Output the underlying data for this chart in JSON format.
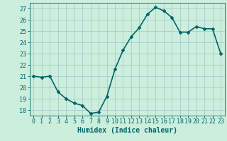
{
  "title": "",
  "xlabel": "Humidex (Indice chaleur)",
  "ylabel": "",
  "x": [
    0,
    1,
    2,
    3,
    4,
    5,
    6,
    7,
    8,
    9,
    10,
    11,
    12,
    13,
    14,
    15,
    16,
    17,
    18,
    19,
    20,
    21,
    22,
    23
  ],
  "y": [
    21.0,
    20.9,
    21.0,
    19.6,
    19.0,
    18.6,
    18.4,
    17.7,
    17.8,
    19.2,
    21.6,
    23.3,
    24.5,
    25.3,
    26.5,
    27.1,
    26.8,
    26.2,
    24.9,
    24.9,
    25.4,
    25.2,
    25.2,
    23.0
  ],
  "line_color": "#006666",
  "marker": "D",
  "marker_size": 2,
  "bg_color": "#cceedd",
  "grid_color": "#aacccc",
  "ylim": [
    17.5,
    27.5
  ],
  "yticks": [
    18,
    19,
    20,
    21,
    22,
    23,
    24,
    25,
    26,
    27
  ],
  "xticks": [
    0,
    1,
    2,
    3,
    4,
    5,
    6,
    7,
    8,
    9,
    10,
    11,
    12,
    13,
    14,
    15,
    16,
    17,
    18,
    19,
    20,
    21,
    22,
    23
  ],
  "tick_color": "#006666",
  "label_color": "#006666",
  "xlabel_fontsize": 7,
  "tick_fontsize": 6,
  "linewidth": 1.2
}
